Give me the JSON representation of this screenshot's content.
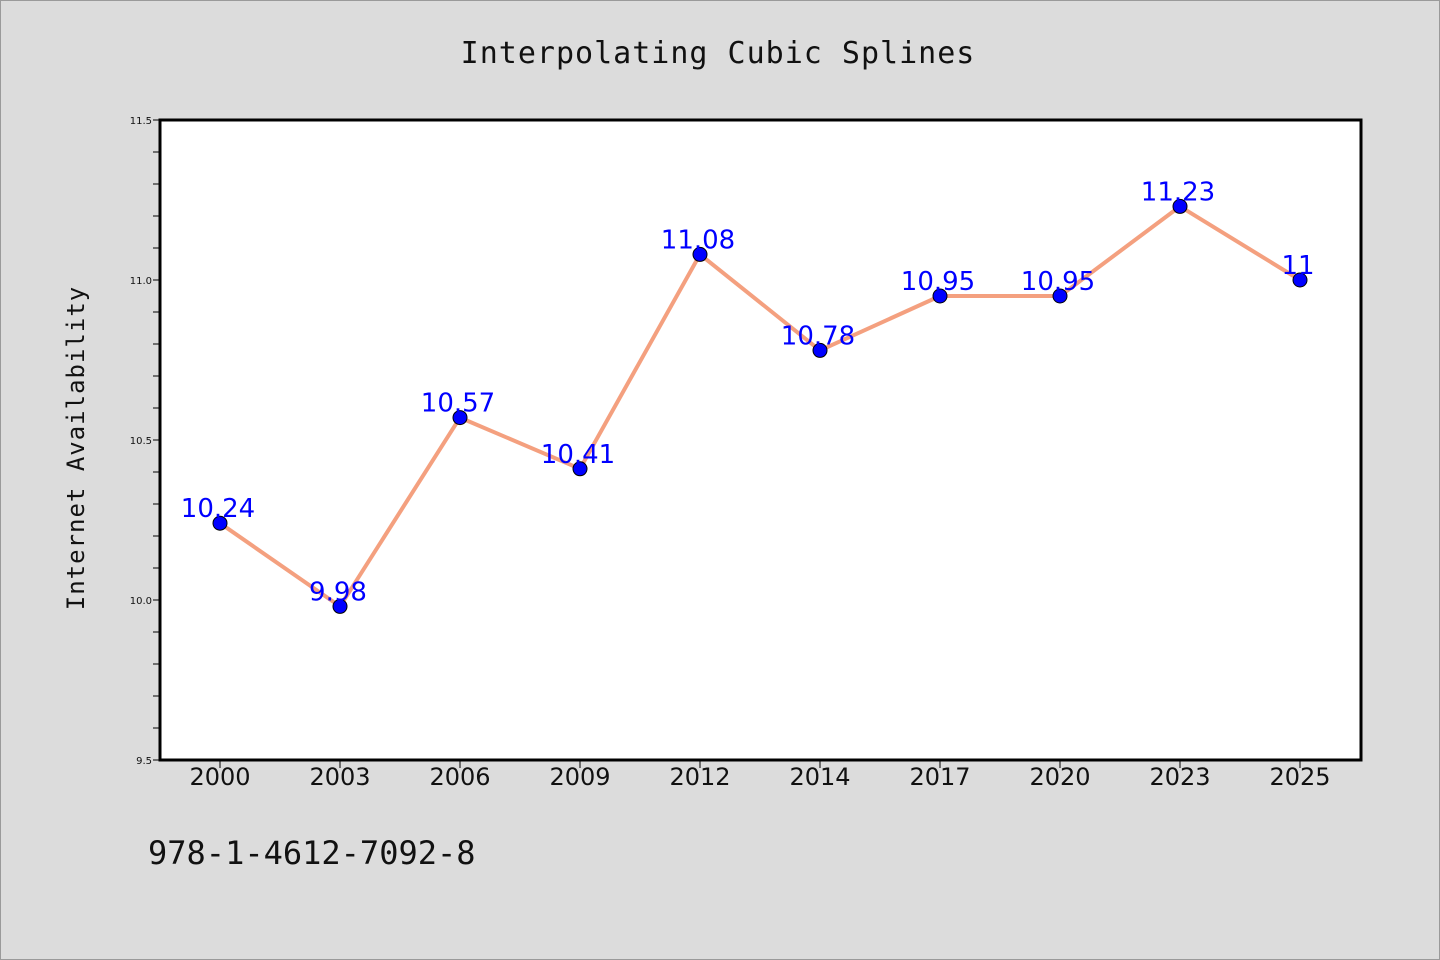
{
  "chart_data": {
    "type": "line",
    "title": "Interpolating Cubic Splines",
    "xlabel": "",
    "ylabel": "Internet Availability",
    "categories": [
      "2000",
      "2003",
      "2006",
      "2009",
      "2012",
      "2014",
      "2017",
      "2020",
      "2023",
      "2025"
    ],
    "values": [
      10.24,
      9.98,
      10.57,
      10.41,
      11.08,
      10.78,
      10.95,
      10.95,
      11.23,
      11
    ],
    "data_labels": [
      "10.24",
      "9.98",
      "10.57",
      "10.41",
      "11.08",
      "10.78",
      "10.95",
      "10.95",
      "11.23",
      "11"
    ],
    "ylim": [
      9.5,
      11.5
    ],
    "yticks": [
      "9.5",
      "10.0",
      "10.5",
      "11.0",
      "11.5"
    ],
    "grid": false,
    "line_color": "#f4a07f",
    "marker_color": "#0000ff",
    "label_color": "#0000ff",
    "background_color": "#dcdcdc",
    "plot_background_color": "#ffffff"
  },
  "footer_text": "978-1-4612-7092-8"
}
